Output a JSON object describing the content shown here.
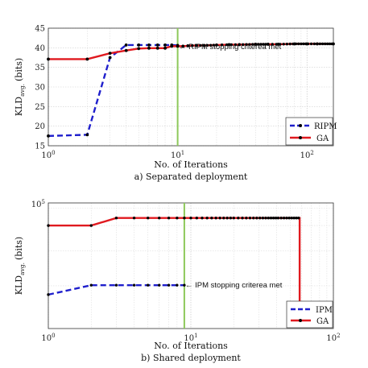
{
  "chart_data": [
    {
      "type": "line",
      "xscale": "log",
      "yscale": "linear",
      "xlim": [
        1,
        160
      ],
      "ylim": [
        15,
        45
      ],
      "yticks": [
        15,
        20,
        25,
        30,
        35,
        40,
        45
      ],
      "xticks": [
        1,
        10,
        100
      ],
      "xtick_labels": [
        "10^0",
        "10^1",
        "10^2"
      ],
      "xlabel": "No. of Iterations",
      "ylabel": "KLD_avg. (bits)",
      "caption": "a) Separated deployment",
      "grid": true,
      "legend_position": "bottom-right",
      "series": [
        {
          "name": "RIPM",
          "style": "dashed",
          "color": "#1f1fcc",
          "markers": true,
          "x": [
            1,
            2,
            3,
            4,
            5,
            6,
            7,
            8,
            9,
            10
          ],
          "y": [
            17.5,
            17.8,
            37.5,
            40.7,
            40.7,
            40.7,
            40.7,
            40.7,
            40.7,
            40.6
          ]
        },
        {
          "name": "GA",
          "style": "solid",
          "color": "#e0191f",
          "markers": true,
          "x": [
            1,
            2,
            3,
            4,
            5,
            6,
            7,
            8,
            9,
            10,
            11,
            12,
            14,
            16,
            20,
            25,
            30,
            40,
            50,
            60,
            80,
            100,
            120,
            160
          ],
          "y": [
            37.1,
            37.1,
            38.6,
            39.3,
            39.8,
            39.9,
            39.9,
            39.9,
            40.4,
            40.4,
            40.4,
            40.5,
            40.6,
            40.6,
            40.7,
            40.8,
            40.8,
            40.9,
            40.9,
            40.9,
            41.0,
            41.0,
            41.0,
            41.0
          ]
        }
      ],
      "vline": {
        "x": 10,
        "color": "#8dc85a"
      },
      "annotation": {
        "text": "← RIPM stopping criterea met",
        "x": 10,
        "y": 40
      }
    },
    {
      "type": "line",
      "xscale": "log",
      "yscale": "log",
      "xlim": [
        1,
        100
      ],
      "ylim_label": "10^5",
      "xticks": [
        1,
        10,
        100
      ],
      "xtick_labels": [
        "10^0",
        "10^1",
        "10^2"
      ],
      "xlabel": "No. of Iterations",
      "ylabel": "KLD_avg. (bits)",
      "caption": "b) Shared deployment",
      "grid": true,
      "legend_position": "bottom-right",
      "series": [
        {
          "name": "IPM",
          "style": "dashed",
          "color": "#1f1fcc",
          "markers": true,
          "x": [
            1,
            2,
            3,
            4,
            5,
            6,
            7,
            8,
            9
          ],
          "y_fraction": [
            0.27,
            0.345,
            0.345,
            0.345,
            0.345,
            0.345,
            0.345,
            0.345,
            0.345
          ]
        },
        {
          "name": "GA",
          "style": "solid",
          "color": "#e0191f",
          "markers": true,
          "x": [
            1,
            2,
            3,
            4,
            5,
            6,
            8,
            10,
            15,
            20,
            25,
            30,
            40,
            50,
            55,
            58,
            58
          ],
          "y_fraction": [
            0.82,
            0.82,
            0.88,
            0.88,
            0.88,
            0.88,
            0.88,
            0.88,
            0.88,
            0.88,
            0.88,
            0.88,
            0.88,
            0.88,
            0.88,
            0.88,
            0.12
          ]
        }
      ],
      "vline": {
        "x": 9,
        "color": "#8dc85a"
      },
      "annotation": {
        "text": "← IPM stopping criterea met",
        "x": 9
      }
    }
  ],
  "labels": {
    "top_ylabel_main": "KLD",
    "top_ylabel_sub": "avg.",
    "top_ylabel_unit": "(bits)",
    "bottom_ylabel_main": "KLD",
    "bottom_ylabel_sub": "avg.",
    "bottom_ylabel_unit": "(bits)",
    "top_xlabel": "No. of Iterations",
    "bottom_xlabel": "No. of Iterations",
    "top_caption": "a) Separated deployment",
    "bottom_caption": "b) Shared deployment",
    "top_annotation": "← RIPM stopping criterea met",
    "bottom_annotation": "← IPM stopping criterea met",
    "top_legend": [
      "RIPM",
      "GA"
    ],
    "bottom_legend": [
      "IPM",
      "GA"
    ],
    "top_yticks": [
      "15",
      "20",
      "25",
      "30",
      "35",
      "40",
      "45"
    ],
    "bottom_ytick": "10",
    "bottom_ytick_exp": "5",
    "xtick_base": "10",
    "xtick_exps": [
      "0",
      "1",
      "2"
    ]
  }
}
